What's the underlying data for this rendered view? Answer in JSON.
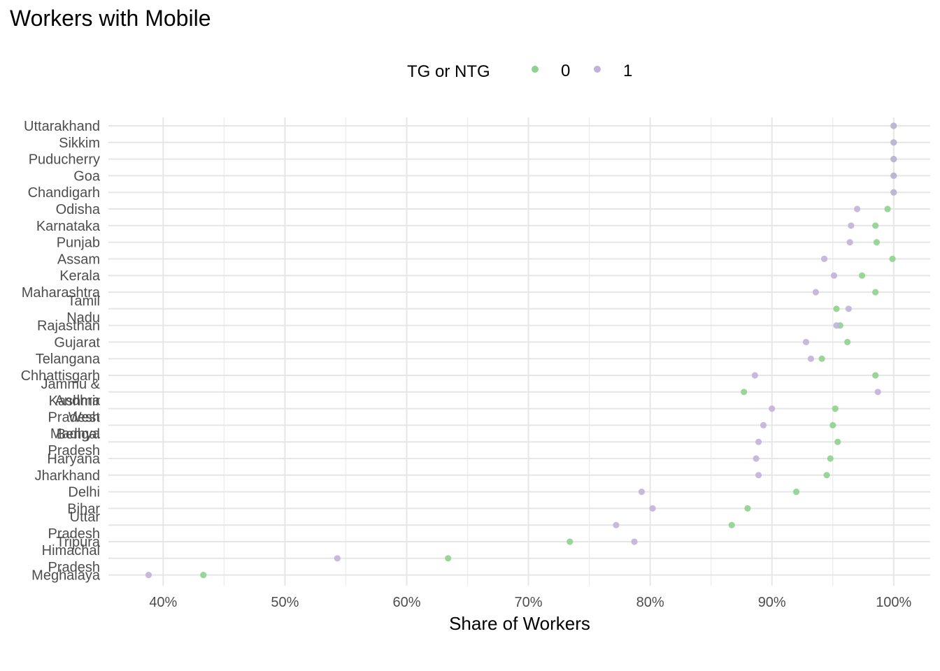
{
  "chart_data": {
    "type": "scatter",
    "title": "Workers with Mobile",
    "xlabel": "Share of Workers",
    "ylabel": "",
    "xlim": [
      0.355,
      1.03
    ],
    "x_ticks": [
      0.4,
      0.5,
      0.6,
      0.7,
      0.8,
      0.9,
      1.0
    ],
    "x_tick_labels": [
      "40%",
      "50%",
      "60%",
      "70%",
      "80%",
      "90%",
      "100%"
    ],
    "grid": true,
    "legend": {
      "title": "TG or NTG",
      "position": "top",
      "entries": [
        "0",
        "1"
      ]
    },
    "colors": {
      "0": "#8fd18f",
      "1": "#c2b2d9"
    },
    "categories": [
      "Uttarakhand",
      "Sikkim",
      "Puducherry",
      "Goa",
      "Chandigarh",
      "Odisha",
      "Karnataka",
      "Punjab",
      "Assam",
      "Kerala",
      "Maharashtra",
      "Tamil Nadu",
      "Rajasthan",
      "Gujarat",
      "Telangana",
      "Chhattisgarh",
      "Jammu & Kashmir",
      "Andhra Pradesh",
      "West Bengal",
      "Madhya Pradesh",
      "Haryana",
      "Jharkhand",
      "Delhi",
      "Bihar",
      "Uttar Pradesh",
      "Tripura",
      "Himachal Pradesh",
      "Meghalaya"
    ],
    "series": [
      {
        "name": "0",
        "values": [
          1.0,
          1.0,
          1.0,
          1.0,
          1.0,
          0.995,
          0.985,
          0.986,
          0.999,
          0.974,
          0.985,
          0.953,
          0.956,
          0.962,
          0.941,
          0.985,
          0.877,
          0.952,
          0.95,
          0.954,
          0.948,
          0.945,
          0.92,
          0.88,
          0.867,
          0.734,
          0.634,
          0.433
        ]
      },
      {
        "name": "1",
        "values": [
          1.0,
          1.0,
          1.0,
          1.0,
          1.0,
          0.97,
          0.965,
          0.964,
          0.943,
          0.951,
          0.936,
          0.963,
          0.953,
          0.928,
          0.932,
          0.886,
          0.987,
          0.9,
          0.893,
          0.889,
          0.887,
          0.889,
          0.793,
          0.802,
          0.772,
          0.787,
          0.543,
          0.388
        ]
      }
    ]
  }
}
